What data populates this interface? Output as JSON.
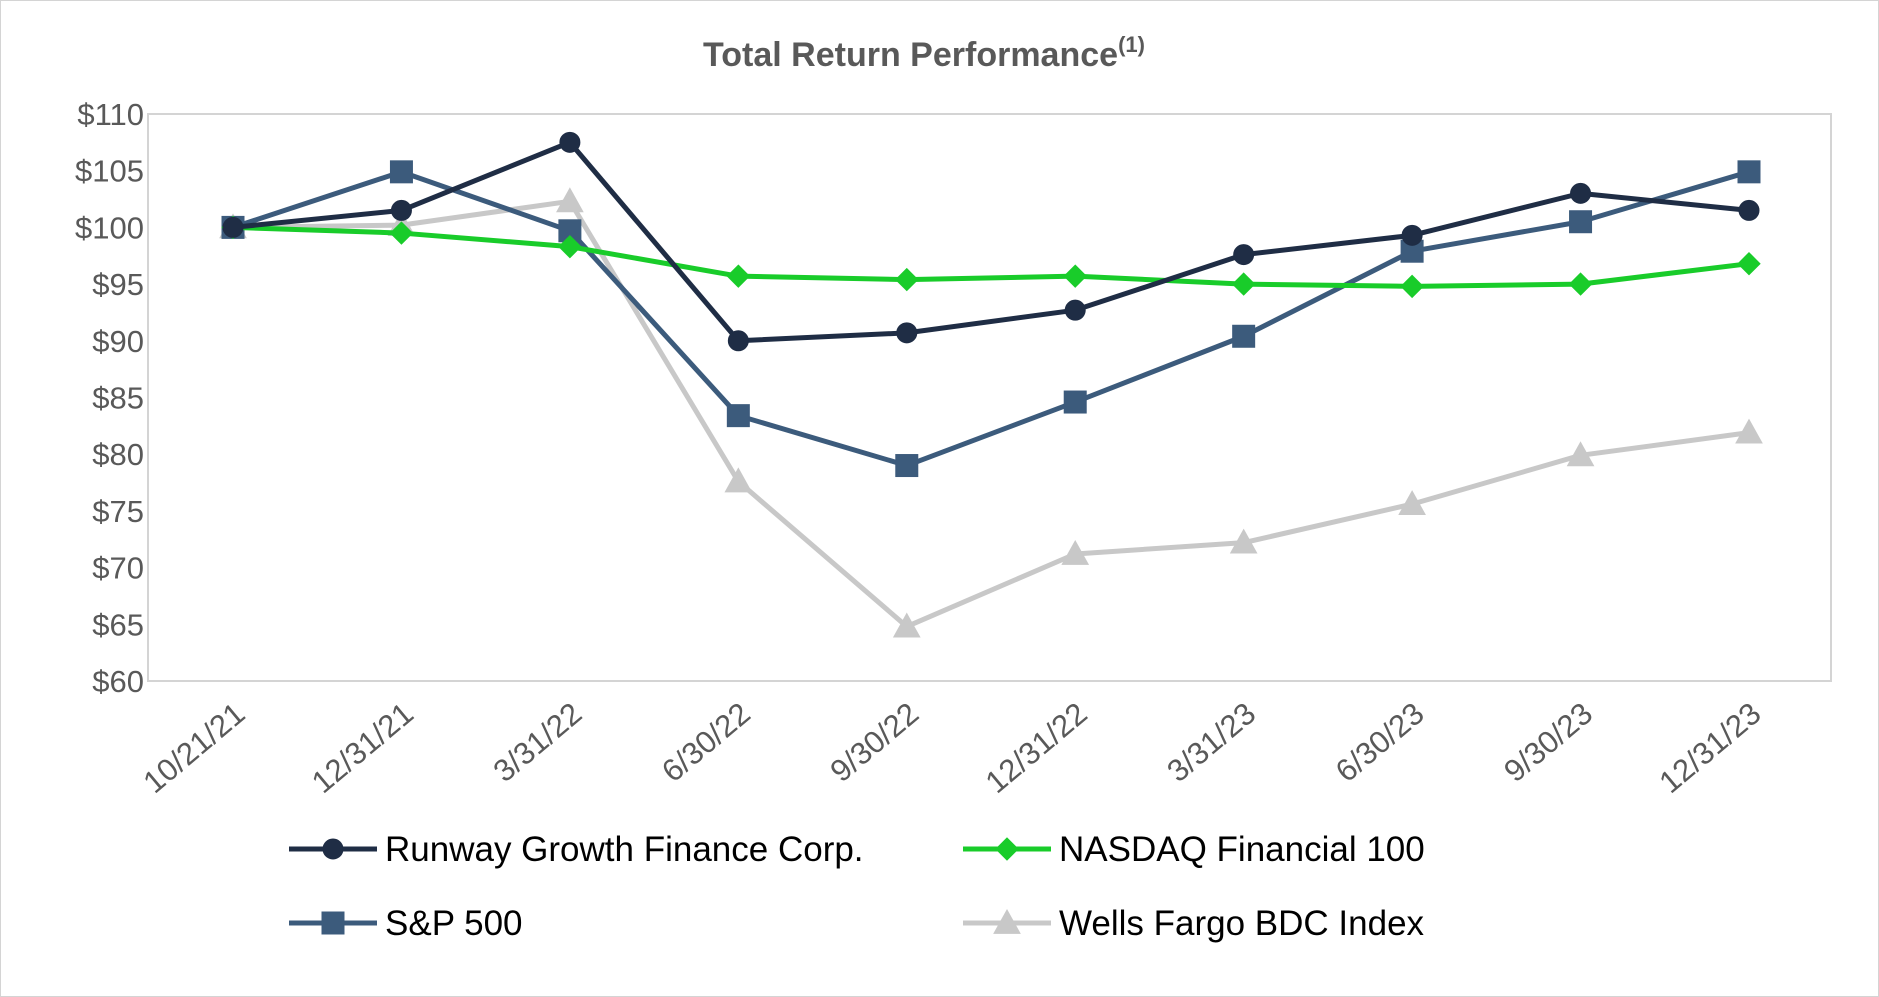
{
  "chart_data": {
    "type": "line",
    "title": "Total Return Performance",
    "title_superscript": "(1)",
    "xlabel": "",
    "ylabel": "",
    "categories": [
      "10/21/21",
      "12/31/21",
      "3/31/22",
      "6/30/22",
      "9/30/22",
      "12/31/22",
      "3/31/23",
      "6/30/23",
      "9/30/23",
      "12/31/23"
    ],
    "ylim": [
      60,
      110
    ],
    "y_ticks": [
      60,
      65,
      70,
      75,
      80,
      85,
      90,
      95,
      100,
      105,
      110
    ],
    "y_tick_labels": [
      "$60",
      "$65",
      "$70",
      "$75",
      "$80",
      "$85",
      "$90",
      "$95",
      "$100",
      "$105",
      "$110"
    ],
    "grid": false,
    "legend_position": "bottom",
    "series": [
      {
        "name": "Runway Growth Finance Corp.",
        "color": "#1f2d45",
        "marker": "circle",
        "values": [
          100.0,
          101.5,
          107.5,
          90.0,
          90.7,
          92.7,
          97.6,
          99.3,
          103.0,
          101.5
        ]
      },
      {
        "name": "NASDAQ Financial 100",
        "color": "#19cc2a",
        "marker": "diamond",
        "values": [
          100.0,
          99.5,
          98.3,
          95.7,
          95.4,
          95.7,
          95.0,
          94.8,
          95.0,
          96.8
        ]
      },
      {
        "name": "S&P 500",
        "color": "#3c5b7c",
        "marker": "square",
        "values": [
          100.0,
          104.9,
          99.7,
          83.4,
          79.0,
          84.6,
          90.4,
          97.9,
          100.5,
          104.9
        ]
      },
      {
        "name": "Wells Fargo BDC Index",
        "color": "#c8c8c8",
        "marker": "triangle",
        "values": [
          100.0,
          100.2,
          102.3,
          77.6,
          64.8,
          71.2,
          72.2,
          75.6,
          79.9,
          81.9
        ]
      }
    ]
  }
}
